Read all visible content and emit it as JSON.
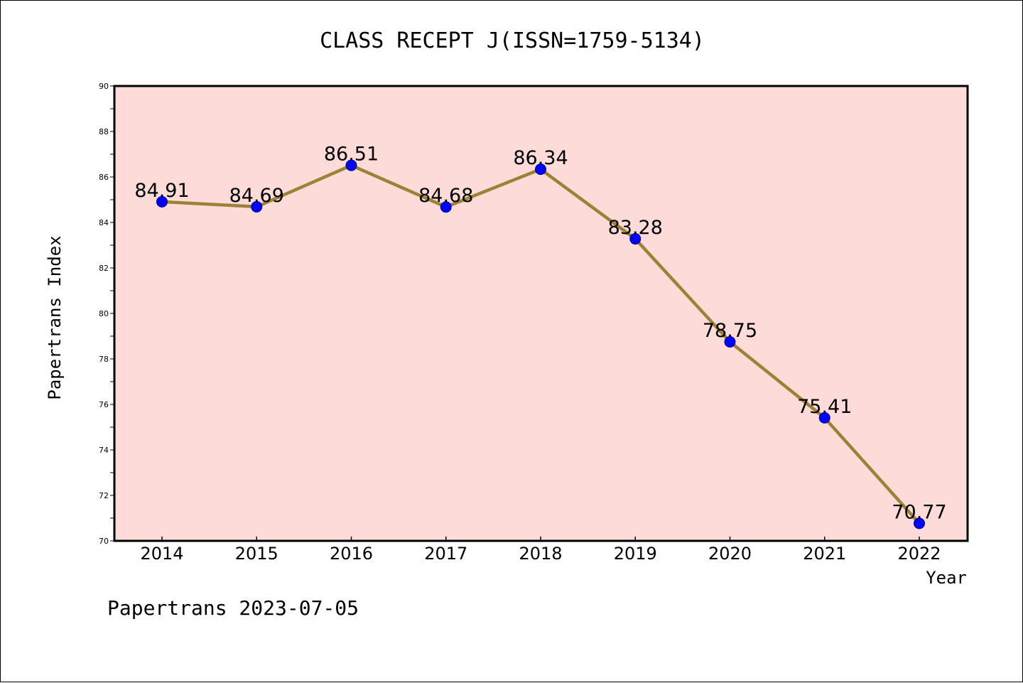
{
  "chart_data": {
    "type": "line",
    "title": "CLASS RECEPT J(ISSN=1759-5134)",
    "xlabel": "Year",
    "ylabel": "Papertrans Index",
    "categories": [
      "2014",
      "2015",
      "2016",
      "2017",
      "2018",
      "2019",
      "2020",
      "2021",
      "2022"
    ],
    "series": [
      {
        "values": [
          84.91,
          84.69,
          86.51,
          84.68,
          86.34,
          83.28,
          78.75,
          75.41,
          70.77
        ]
      }
    ],
    "data_labels": [
      "84.91",
      "84.69",
      "86.51",
      "84.68",
      "86.34",
      "83.28",
      "78.75",
      "75.41",
      "70.77"
    ],
    "ylim": [
      70,
      90
    ],
    "yticks": [
      70,
      72,
      74,
      76,
      78,
      80,
      82,
      84,
      86,
      88,
      90
    ],
    "grid": false,
    "legend": "none",
    "colors": {
      "plot_background": "#fddbd8",
      "line": "#9b8236",
      "marker": "#0000ff"
    }
  },
  "footer": "Papertrans 2023-07-05"
}
